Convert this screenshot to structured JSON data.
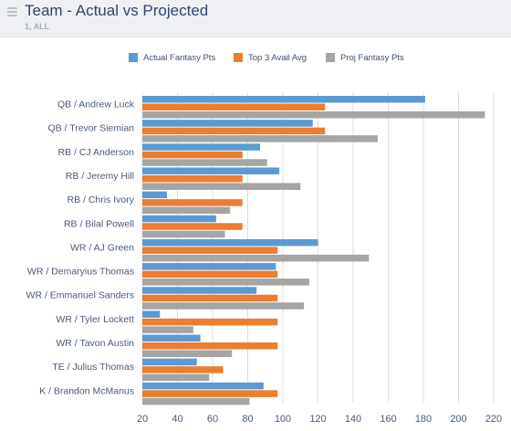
{
  "header": {
    "title": "Team - Actual vs Projected",
    "subtitle": "1, ALL"
  },
  "chart_data": {
    "type": "bar",
    "orientation": "horizontal",
    "categories": [
      "QB / Andrew Luck",
      "QB / Trevor Siemian",
      "RB / CJ Anderson",
      "RB / Jeremy Hill",
      "RB / Chris Ivory",
      "RB / Bilal Powell",
      "WR / AJ Green",
      "WR / Demaryius Thomas",
      "WR / Emmanuel Sanders",
      "WR / Tyler Lockett",
      "WR / Tavon Austin",
      "TE / Julius Thomas",
      "K / Brandon McManus"
    ],
    "series": [
      {
        "name": "Actual Fantasy Pts",
        "color": "#5b9bd5",
        "values": [
          181,
          117,
          87,
          98,
          34,
          62,
          120,
          96,
          85,
          30,
          53,
          51,
          89
        ]
      },
      {
        "name": "Top 3 Avail Avg",
        "color": "#ed7d31",
        "values": [
          124,
          124,
          77,
          77,
          77,
          77,
          97,
          97,
          97,
          97,
          97,
          66,
          97
        ]
      },
      {
        "name": "Proj Fantasy Pts",
        "color": "#a5a5a5",
        "values": [
          215,
          154,
          91,
          110,
          70,
          67,
          149,
          115,
          112,
          49,
          71,
          58,
          81
        ]
      }
    ],
    "x_ticks": [
      20,
      40,
      60,
      80,
      100,
      120,
      140,
      160,
      180,
      200,
      220
    ],
    "xlim": [
      20,
      220
    ],
    "grid": "vertical",
    "legend": "top-center"
  }
}
